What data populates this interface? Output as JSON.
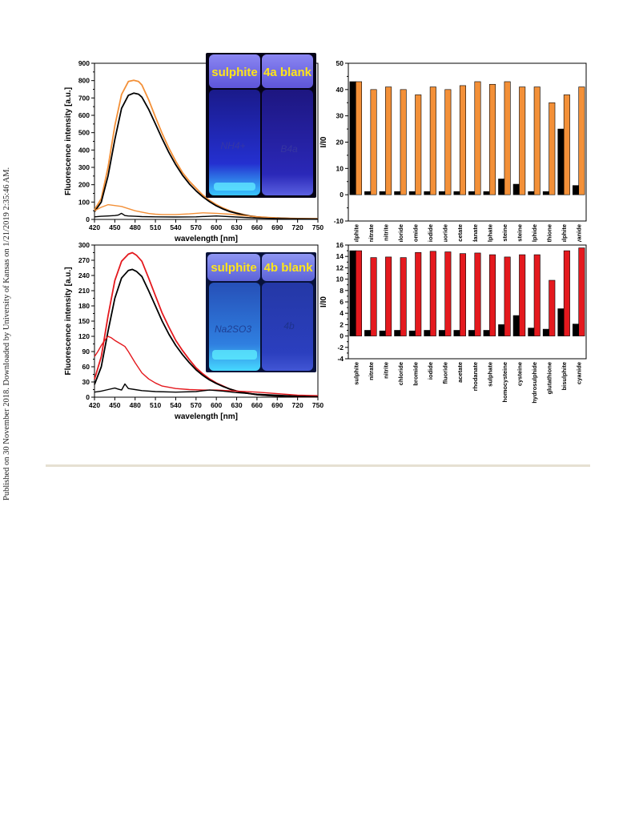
{
  "sidebar_text": "Published on 30 November 2018. Downloaded by University of Kansas on 1/21/2019 2:35:46 AM.",
  "photos": [
    {
      "label_left": "sulphite",
      "label_right": "4a blank",
      "vial_left_text": "NH4+",
      "vial_right_text": "B4a"
    },
    {
      "label_left": "sulphite",
      "label_right": "4b blank",
      "vial_left_text": "Na2SO3",
      "vial_right_text": "4b"
    }
  ],
  "colors": {
    "orange": "#f39038",
    "red": "#e4191e",
    "black": "#000000"
  },
  "chart_data": [
    {
      "type": "line",
      "xlabel": "wavelength [nm]",
      "ylabel": "Fluorescence intensity [a.u.]",
      "xlim": [
        420,
        750
      ],
      "ylim": [
        0,
        900
      ],
      "xticks": [
        420,
        450,
        480,
        510,
        540,
        570,
        600,
        630,
        660,
        690,
        720,
        750
      ],
      "yticks": [
        0,
        100,
        200,
        300,
        400,
        500,
        600,
        700,
        800,
        900
      ],
      "series": [
        {
          "color": "#f39038",
          "x": [
            420,
            430,
            440,
            450,
            460,
            470,
            478,
            485,
            490,
            500,
            510,
            520,
            530,
            540,
            550,
            560,
            570,
            580,
            590,
            600,
            610,
            620,
            630,
            640,
            650,
            660,
            680,
            700,
            720,
            750
          ],
          "y": [
            55,
            120,
            300,
            540,
            720,
            795,
            802,
            795,
            775,
            690,
            590,
            495,
            410,
            335,
            270,
            220,
            180,
            140,
            110,
            85,
            65,
            50,
            38,
            28,
            20,
            15,
            10,
            7,
            5,
            4
          ]
        },
        {
          "color": "#000000",
          "x": [
            420,
            430,
            440,
            450,
            460,
            470,
            478,
            485,
            490,
            500,
            510,
            520,
            530,
            540,
            550,
            560,
            570,
            580,
            590,
            600,
            610,
            620,
            630,
            640,
            650,
            660,
            680,
            700,
            720,
            750
          ],
          "y": [
            45,
            100,
            250,
            460,
            640,
            715,
            728,
            722,
            705,
            635,
            550,
            465,
            385,
            315,
            255,
            205,
            165,
            130,
            102,
            78,
            60,
            45,
            35,
            26,
            19,
            14,
            9,
            6,
            4,
            3
          ]
        },
        {
          "color": "#f39038",
          "x": [
            420,
            430,
            440,
            450,
            460,
            470,
            480,
            490,
            500,
            510,
            520,
            540,
            560,
            580,
            600,
            620,
            640,
            660,
            690,
            720,
            750
          ],
          "y": [
            50,
            70,
            85,
            80,
            75,
            62,
            50,
            42,
            34,
            30,
            28,
            28,
            32,
            38,
            35,
            30,
            22,
            15,
            8,
            5,
            3
          ]
        },
        {
          "color": "#000000",
          "x": [
            420,
            430,
            440,
            450,
            455,
            460,
            465,
            470,
            480,
            490,
            510,
            540,
            570,
            600,
            630,
            660,
            690,
            720,
            750
          ],
          "y": [
            15,
            18,
            20,
            22,
            25,
            35,
            22,
            20,
            18,
            16,
            15,
            14,
            15,
            20,
            14,
            8,
            5,
            3,
            2
          ]
        }
      ]
    },
    {
      "type": "bar",
      "ylabel": "I/I0",
      "ylim": [
        -10,
        50
      ],
      "yticks": [
        -10,
        0,
        10,
        20,
        30,
        40,
        50
      ],
      "categories": [
        "sulphite",
        "nitrate",
        "nitrite",
        "chloride",
        "bromide",
        "iodide",
        "fluoride",
        "acetate",
        "rhodanate",
        "sulphate",
        "homocysteine",
        "cysteine",
        "hydrosulphide",
        "glutathione",
        "bisulphite",
        "cyanide"
      ],
      "series": [
        {
          "color": "#000000",
          "values": [
            43,
            1.2,
            1.2,
            1.2,
            1.2,
            1.2,
            1.2,
            1.2,
            1.2,
            1.2,
            6,
            4,
            1.2,
            1.2,
            25,
            3.5
          ]
        },
        {
          "color": "#f39038",
          "values": [
            43,
            40,
            41,
            40,
            38,
            41,
            40,
            41.5,
            43,
            42,
            43,
            41,
            41,
            35,
            38,
            41
          ]
        }
      ]
    },
    {
      "type": "line",
      "xlabel": "wavelength [nm]",
      "ylabel": "Fluorescence intensity [a.u.]",
      "xlim": [
        420,
        750
      ],
      "ylim": [
        0,
        300
      ],
      "xticks": [
        420,
        450,
        480,
        510,
        540,
        570,
        600,
        630,
        660,
        690,
        720,
        750
      ],
      "yticks": [
        0,
        30,
        60,
        90,
        120,
        150,
        180,
        210,
        240,
        270,
        300
      ],
      "series": [
        {
          "color": "#e4191e",
          "x": [
            420,
            430,
            440,
            450,
            460,
            470,
            476,
            482,
            490,
            500,
            510,
            520,
            530,
            540,
            550,
            560,
            570,
            580,
            590,
            600,
            610,
            620,
            630,
            640,
            660,
            680,
            700,
            720,
            750
          ],
          "y": [
            35,
            80,
            160,
            230,
            268,
            282,
            285,
            280,
            268,
            235,
            200,
            166,
            138,
            112,
            92,
            74,
            58,
            46,
            36,
            28,
            22,
            16,
            12,
            9,
            5,
            3,
            2,
            1,
            1
          ]
        },
        {
          "color": "#000000",
          "x": [
            420,
            430,
            440,
            450,
            460,
            470,
            476,
            482,
            490,
            500,
            510,
            520,
            530,
            540,
            550,
            560,
            570,
            580,
            590,
            600,
            610,
            620,
            630,
            640,
            660,
            680,
            700,
            720,
            750
          ],
          "y": [
            25,
            60,
            130,
            195,
            235,
            250,
            252,
            248,
            238,
            210,
            180,
            150,
            124,
            102,
            84,
            68,
            54,
            43,
            34,
            27,
            21,
            16,
            12,
            9,
            5,
            3,
            2,
            1,
            1
          ]
        },
        {
          "color": "#e4191e",
          "x": [
            420,
            425,
            430,
            435,
            440,
            445,
            450,
            455,
            460,
            465,
            470,
            480,
            490,
            500,
            510,
            520,
            540,
            560,
            580,
            600,
            630,
            660,
            690,
            720,
            750
          ],
          "y": [
            80,
            90,
            102,
            112,
            120,
            117,
            112,
            108,
            104,
            100,
            90,
            68,
            48,
            36,
            28,
            22,
            17,
            15,
            14,
            14,
            12,
            10,
            7,
            4,
            3
          ]
        },
        {
          "color": "#000000",
          "x": [
            420,
            430,
            440,
            450,
            455,
            460,
            465,
            470,
            480,
            490,
            510,
            540,
            570,
            590,
            610,
            630,
            660,
            690,
            720,
            750
          ],
          "y": [
            10,
            12,
            15,
            18,
            16,
            14,
            26,
            17,
            15,
            13,
            11,
            10,
            11,
            14,
            12,
            9,
            6,
            4,
            2,
            1
          ]
        }
      ]
    },
    {
      "type": "bar",
      "ylabel": "I/I0",
      "ylim": [
        -4,
        16
      ],
      "yticks": [
        -4,
        -2,
        0,
        2,
        4,
        6,
        8,
        10,
        12,
        14,
        16
      ],
      "categories": [
        "sulphite",
        "nitrate",
        "nitrite",
        "chloride",
        "bromide",
        "iodide",
        "fluoride",
        "acetate",
        "rhodanate",
        "sulphate",
        "homocysteine",
        "cysteine",
        "hydrosulphide",
        "glutathione",
        "bisulphite",
        "cyanide"
      ],
      "series": [
        {
          "color": "#000000",
          "values": [
            15,
            1,
            0.9,
            1,
            0.9,
            1,
            1,
            1,
            1,
            1,
            2,
            3.6,
            1.4,
            1.2,
            4.8,
            2.1
          ]
        },
        {
          "color": "#e4191e",
          "values": [
            15,
            13.8,
            13.9,
            13.8,
            14.7,
            14.9,
            14.8,
            14.5,
            14.6,
            14.3,
            13.9,
            14.3,
            14.3,
            9.8,
            15,
            15.5
          ]
        }
      ]
    }
  ]
}
